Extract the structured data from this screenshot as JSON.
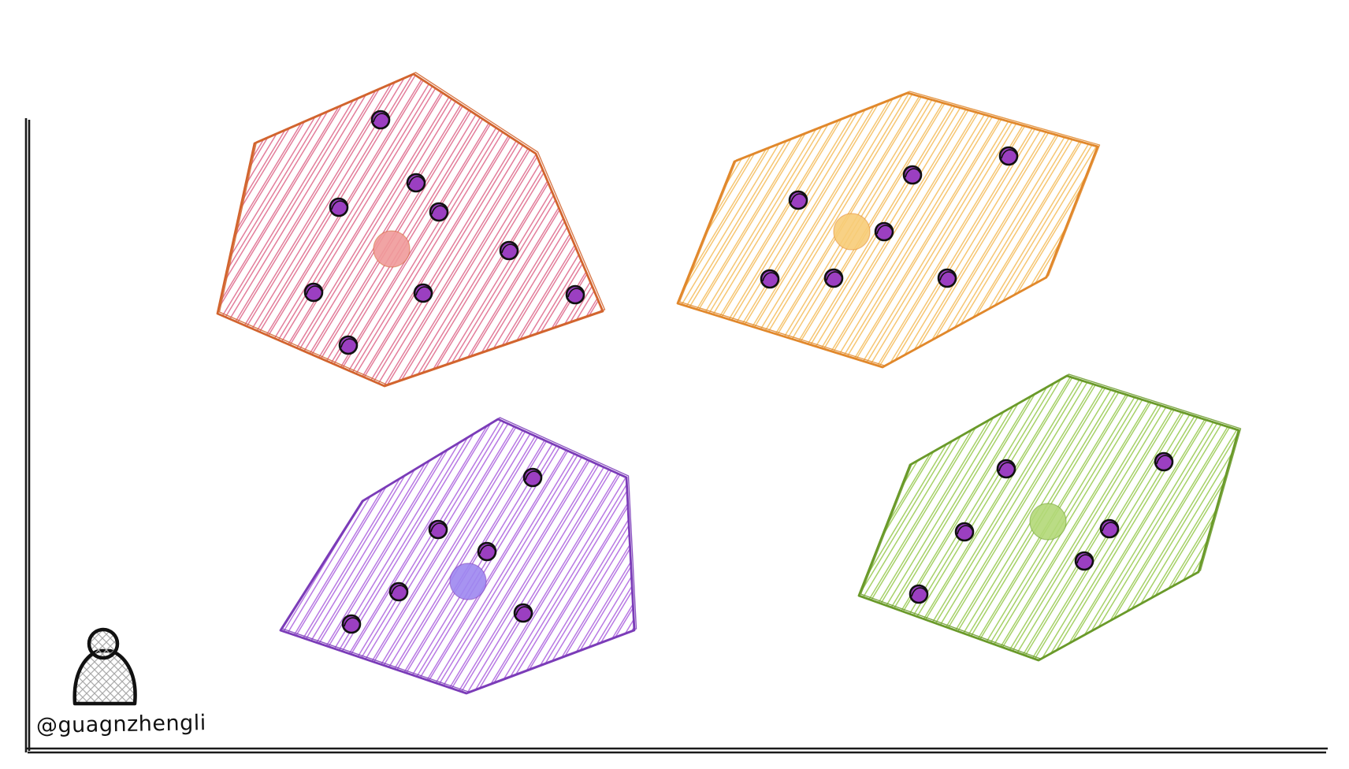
{
  "watermark": {
    "handle": "@guagnzhengli",
    "avatar_icon": "person-icon"
  },
  "colors": {
    "point_fill": "#9b3fc1",
    "point_stroke": "#111111",
    "axis": "#1a1a1a"
  },
  "clusters": [
    {
      "id": "red",
      "fill": "#e07090",
      "edge": "#d2642e",
      "centroid_fill": "#f09a9a",
      "polygon": [
        [
          276,
          398
        ],
        [
          323,
          182
        ],
        [
          525,
          94
        ],
        [
          680,
          195
        ],
        [
          765,
          395
        ],
        [
          488,
          490
        ]
      ],
      "centroid": [
        497,
        316
      ],
      "points": [
        [
          483,
          152
        ],
        [
          528,
          232
        ],
        [
          430,
          263
        ],
        [
          557,
          269
        ],
        [
          646,
          318
        ],
        [
          398,
          371
        ],
        [
          537,
          372
        ],
        [
          730,
          374
        ],
        [
          442,
          438
        ]
      ]
    },
    {
      "id": "orange",
      "fill": "#f5c064",
      "edge": "#e1882c",
      "centroid_fill": "#f7cc78",
      "polygon": [
        [
          860,
          385
        ],
        [
          932,
          205
        ],
        [
          1152,
          118
        ],
        [
          1393,
          186
        ],
        [
          1328,
          352
        ],
        [
          1120,
          466
        ]
      ],
      "centroid": [
        1081,
        294
      ],
      "points": [
        [
          1158,
          222
        ],
        [
          1280,
          198
        ],
        [
          1013,
          254
        ],
        [
          1122,
          294
        ],
        [
          977,
          354
        ],
        [
          1058,
          353
        ],
        [
          1202,
          353
        ]
      ]
    },
    {
      "id": "purple",
      "fill": "#b06ae0",
      "edge": "#7b3cb8",
      "centroid_fill": "#9d87f0",
      "polygon": [
        [
          356,
          800
        ],
        [
          460,
          636
        ],
        [
          632,
          532
        ],
        [
          795,
          606
        ],
        [
          805,
          800
        ],
        [
          592,
          880
        ]
      ],
      "centroid": [
        594,
        738
      ],
      "points": [
        [
          676,
          606
        ],
        [
          556,
          672
        ],
        [
          618,
          700
        ],
        [
          506,
          751
        ],
        [
          664,
          778
        ],
        [
          446,
          792
        ]
      ]
    },
    {
      "id": "green",
      "fill": "#9ccc58",
      "edge": "#6a9a2a",
      "centroid_fill": "#b2d878",
      "polygon": [
        [
          1090,
          756
        ],
        [
          1155,
          590
        ],
        [
          1354,
          477
        ],
        [
          1572,
          546
        ],
        [
          1521,
          726
        ],
        [
          1318,
          838
        ]
      ],
      "centroid": [
        1330,
        662
      ],
      "points": [
        [
          1277,
          595
        ],
        [
          1477,
          586
        ],
        [
          1224,
          675
        ],
        [
          1408,
          671
        ],
        [
          1376,
          712
        ],
        [
          1166,
          754
        ]
      ]
    }
  ]
}
